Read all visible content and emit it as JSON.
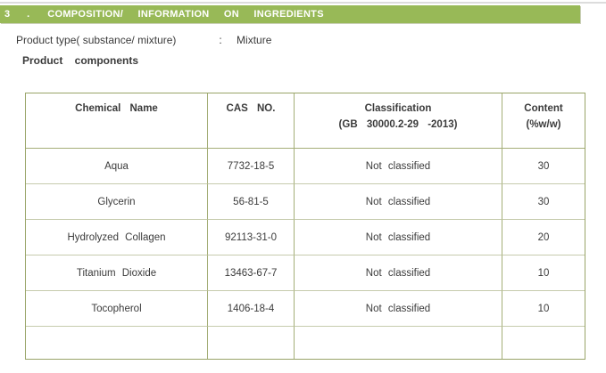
{
  "document": {
    "section_header": {
      "number": "3 .",
      "title": "COMPOSITION/ INFORMATION ON INGREDIENTS"
    },
    "product_type": {
      "label": "Product type( substance/ mixture)",
      "separator": ":",
      "value": "Mixture"
    },
    "subheading": "Product components",
    "table": {
      "headers": {
        "chemical": "Chemical Name",
        "cas": "CAS NO.",
        "classification_line1": "Classification",
        "classification_line2": "(GB 30000.2-29 -2013)",
        "content_line1": "Content",
        "content_line2": "(%w/w)"
      },
      "rows": [
        {
          "chemical": "Aqua",
          "cas": "7732-18-5",
          "classification": "Not classified",
          "content": "30"
        },
        {
          "chemical": "Glycerin",
          "cas": "56-81-5",
          "classification": "Not classified",
          "content": "30"
        },
        {
          "chemical": "Hydrolyzed Collagen",
          "cas": "92113-31-0",
          "classification": "Not classified",
          "content": "20"
        },
        {
          "chemical": "Titanium Dioxide",
          "cas": "13463-67-7",
          "classification": "Not classified",
          "content": "10"
        },
        {
          "chemical": "Tocopherol",
          "cas": "1406-18-4",
          "classification": "Not classified",
          "content": "10"
        },
        {
          "chemical": "",
          "cas": "",
          "classification": "",
          "content": ""
        }
      ]
    },
    "colors": {
      "section_bar_background": "#98b957",
      "section_bar_text": "#ffffff",
      "table_outer_border": "#99a468",
      "table_vertical_border": "#a4ae77",
      "table_horizontal_border": "#c6cbad",
      "body_text": "#3b3b3b",
      "top_rule": "#dcdcdc"
    }
  }
}
